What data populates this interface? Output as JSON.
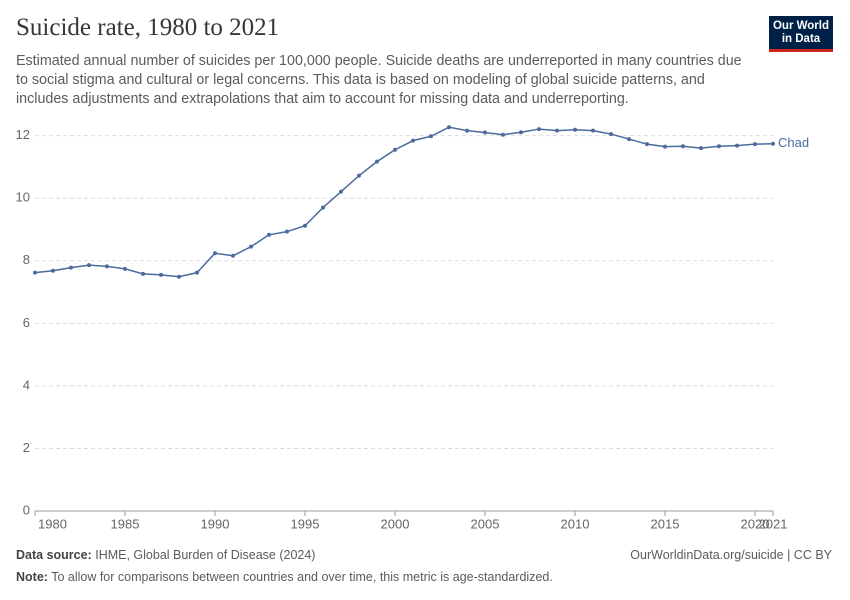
{
  "header": {
    "logo": [
      "Our World",
      "in Data"
    ]
  },
  "chart_data": {
    "type": "line",
    "title": "Suicide rate, 1980 to 2021",
    "subtitle": "Estimated annual number of suicides per 100,000 people. Suicide deaths are underreported in many countries due to social stigma and cultural or legal concerns. This data is based on modeling of global suicide patterns, and includes adjustments and extrapolations that aim to account for missing data and underreporting.",
    "x": [
      1980,
      1981,
      1982,
      1983,
      1984,
      1985,
      1986,
      1987,
      1988,
      1989,
      1990,
      1991,
      1992,
      1993,
      1994,
      1995,
      1996,
      1997,
      1998,
      1999,
      2000,
      2001,
      2002,
      2003,
      2004,
      2005,
      2006,
      2007,
      2008,
      2009,
      2010,
      2011,
      2012,
      2013,
      2014,
      2015,
      2016,
      2017,
      2018,
      2019,
      2020,
      2021
    ],
    "series": [
      {
        "name": "Chad",
        "color": "#4c6a9c",
        "values": [
          7.62,
          7.68,
          7.78,
          7.86,
          7.82,
          7.74,
          7.58,
          7.55,
          7.49,
          7.62,
          8.24,
          8.16,
          8.45,
          8.83,
          8.93,
          9.12,
          9.7,
          10.21,
          10.72,
          11.17,
          11.55,
          11.84,
          11.98,
          12.27,
          12.16,
          12.1,
          12.03,
          12.11,
          12.21,
          12.16,
          12.19,
          12.16,
          12.05,
          11.89,
          11.73,
          11.65,
          11.66,
          11.6,
          11.66,
          11.68,
          11.73,
          11.74
        ]
      }
    ],
    "xlim": [
      1980,
      2021
    ],
    "xticks": [
      1980,
      1985,
      1990,
      1995,
      2000,
      2005,
      2010,
      2015,
      2020,
      2021
    ],
    "ylim": [
      0,
      12.5
    ],
    "yticks": [
      0,
      2,
      4,
      6,
      8,
      10,
      12
    ],
    "grid": true
  },
  "footer": {
    "source_label": "Data source:",
    "source": "IHME, Global Burden of Disease (2024)",
    "url": "OurWorldinData.org/suicide | CC BY",
    "note_label": "Note:",
    "note": "To allow for comparisons between countries and over time, this metric is age-standardized."
  }
}
